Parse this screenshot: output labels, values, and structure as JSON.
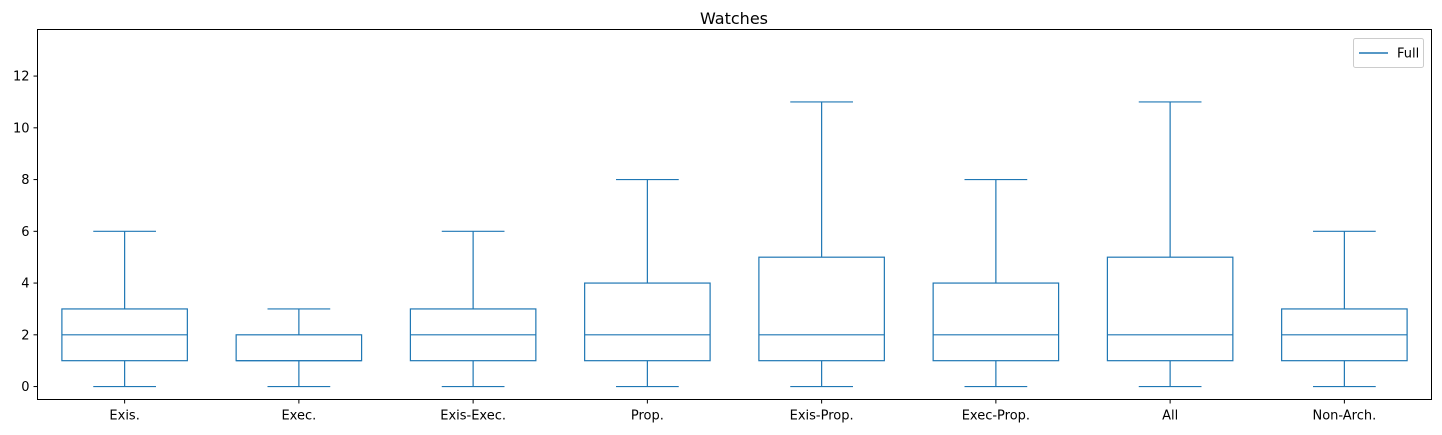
{
  "chart_data": {
    "type": "box",
    "title": "Watches",
    "xlabel": "",
    "ylabel": "",
    "ylim": [
      -0.5,
      13.8
    ],
    "yticks": [
      0,
      2,
      4,
      6,
      8,
      10,
      12
    ],
    "grid": false,
    "legend": {
      "position": "top-right",
      "entries": [
        "Full"
      ]
    },
    "color": "#1f77b4",
    "categories": [
      "Exis.",
      "Exec.",
      "Exis-Exec.",
      "Prop.",
      "Exis-Prop.",
      "Exec-Prop.",
      "All",
      "Non-Arch."
    ],
    "series": [
      {
        "name": "Full",
        "boxes": [
          {
            "whisker_low": 0,
            "q1": 1,
            "median": 2,
            "q3": 3,
            "whisker_high": 6
          },
          {
            "whisker_low": 0,
            "q1": 1,
            "median": 1,
            "q3": 2,
            "whisker_high": 3
          },
          {
            "whisker_low": 0,
            "q1": 1,
            "median": 2,
            "q3": 3,
            "whisker_high": 6
          },
          {
            "whisker_low": 0,
            "q1": 1,
            "median": 2,
            "q3": 4,
            "whisker_high": 8
          },
          {
            "whisker_low": 0,
            "q1": 1,
            "median": 2,
            "q3": 5,
            "whisker_high": 11
          },
          {
            "whisker_low": 0,
            "q1": 1,
            "median": 2,
            "q3": 4,
            "whisker_high": 8
          },
          {
            "whisker_low": 0,
            "q1": 1,
            "median": 2,
            "q3": 5,
            "whisker_high": 11
          },
          {
            "whisker_low": 0,
            "q1": 1,
            "median": 2,
            "q3": 3,
            "whisker_high": 6
          }
        ]
      }
    ]
  }
}
